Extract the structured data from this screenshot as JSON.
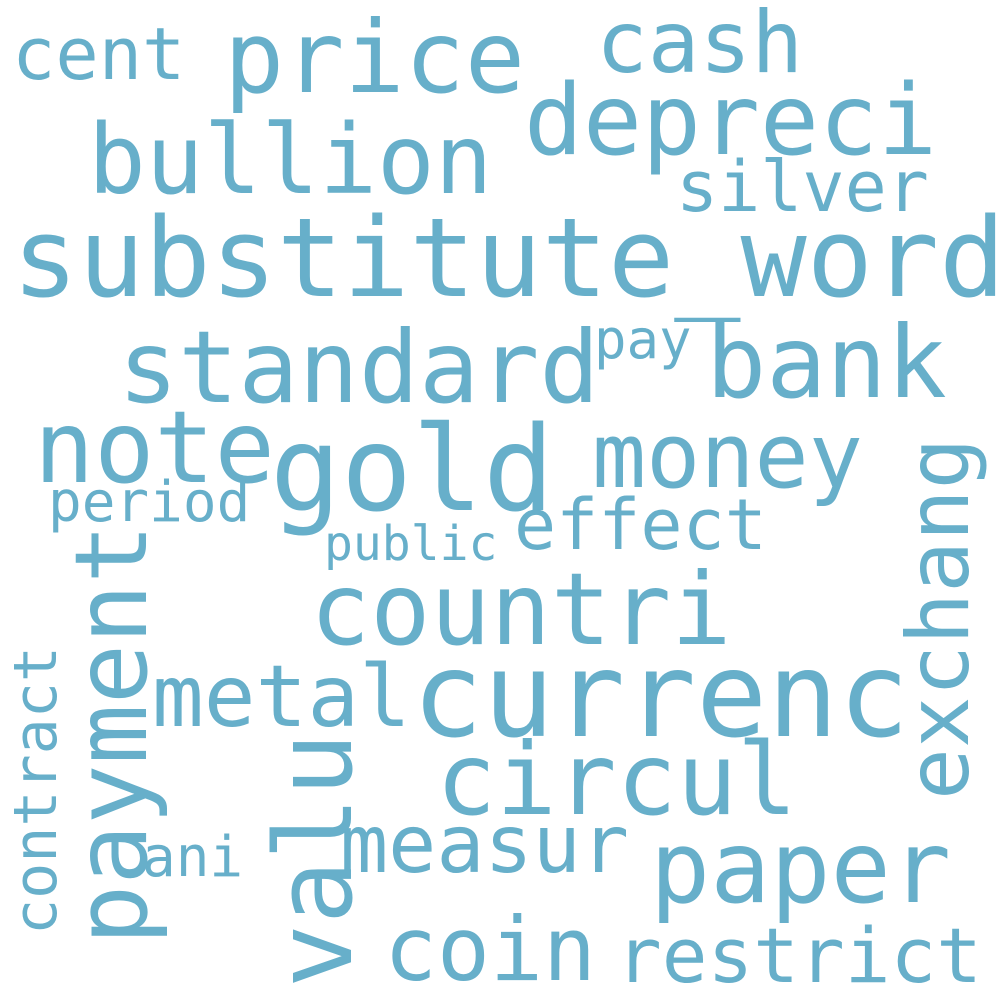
{
  "wordcloud": {
    "color": "#67afca",
    "background": "#ffffff",
    "words": {
      "substitute_word": "substitute_word",
      "price": "price",
      "cash": "cash",
      "cent": "cent",
      "depreci": "depreci",
      "bullion": "bullion",
      "silver": "silver",
      "standard": "standard",
      "pay": "pay",
      "bank": "bank",
      "note": "note",
      "gold": "gold",
      "money": "money",
      "period": "period",
      "effect": "effect",
      "public": "public",
      "countri": "countri",
      "metal": "metal",
      "currenc": "currenc",
      "circul": "circul",
      "measur": "measur",
      "ani": "ani",
      "paper": "paper",
      "coin": "coin",
      "restrict": "restrict",
      "exchang": "exchang",
      "payment": "payment",
      "valu": "valu",
      "contract": "contract"
    }
  }
}
